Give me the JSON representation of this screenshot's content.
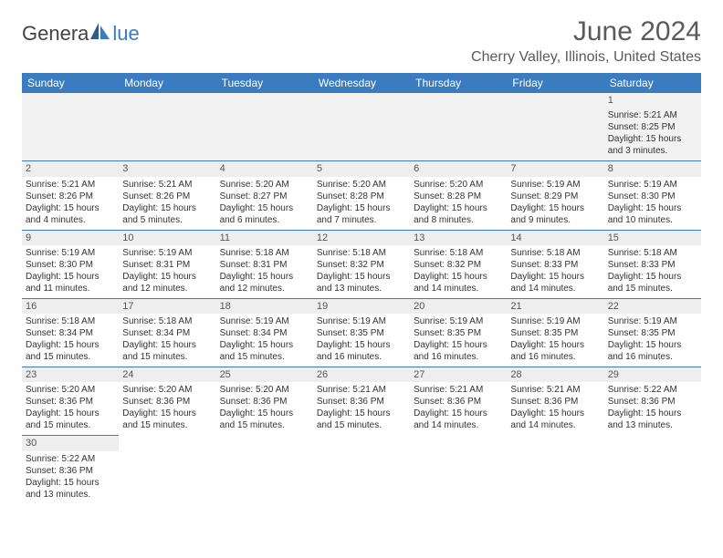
{
  "brand": {
    "part1": "Genera",
    "part2": "lue"
  },
  "title": "June 2024",
  "location": "Cherry Valley, Illinois, United States",
  "colors": {
    "header_bg": "#3b7bbf",
    "header_text": "#ffffff",
    "grid_line": "#3b7bbf",
    "daynum_bg": "#eeeeee",
    "text": "#333333",
    "title_color": "#5a5a5a",
    "logo_gray": "#434343",
    "logo_blue": "#3b7bbf"
  },
  "day_headers": [
    "Sunday",
    "Monday",
    "Tuesday",
    "Wednesday",
    "Thursday",
    "Friday",
    "Saturday"
  ],
  "weeks": [
    [
      null,
      null,
      null,
      null,
      null,
      null,
      {
        "n": "1",
        "sr": "Sunrise: 5:21 AM",
        "ss": "Sunset: 8:25 PM",
        "d1": "Daylight: 15 hours",
        "d2": "and 3 minutes."
      }
    ],
    [
      {
        "n": "2",
        "sr": "Sunrise: 5:21 AM",
        "ss": "Sunset: 8:26 PM",
        "d1": "Daylight: 15 hours",
        "d2": "and 4 minutes."
      },
      {
        "n": "3",
        "sr": "Sunrise: 5:21 AM",
        "ss": "Sunset: 8:26 PM",
        "d1": "Daylight: 15 hours",
        "d2": "and 5 minutes."
      },
      {
        "n": "4",
        "sr": "Sunrise: 5:20 AM",
        "ss": "Sunset: 8:27 PM",
        "d1": "Daylight: 15 hours",
        "d2": "and 6 minutes."
      },
      {
        "n": "5",
        "sr": "Sunrise: 5:20 AM",
        "ss": "Sunset: 8:28 PM",
        "d1": "Daylight: 15 hours",
        "d2": "and 7 minutes."
      },
      {
        "n": "6",
        "sr": "Sunrise: 5:20 AM",
        "ss": "Sunset: 8:28 PM",
        "d1": "Daylight: 15 hours",
        "d2": "and 8 minutes."
      },
      {
        "n": "7",
        "sr": "Sunrise: 5:19 AM",
        "ss": "Sunset: 8:29 PM",
        "d1": "Daylight: 15 hours",
        "d2": "and 9 minutes."
      },
      {
        "n": "8",
        "sr": "Sunrise: 5:19 AM",
        "ss": "Sunset: 8:30 PM",
        "d1": "Daylight: 15 hours",
        "d2": "and 10 minutes."
      }
    ],
    [
      {
        "n": "9",
        "sr": "Sunrise: 5:19 AM",
        "ss": "Sunset: 8:30 PM",
        "d1": "Daylight: 15 hours",
        "d2": "and 11 minutes."
      },
      {
        "n": "10",
        "sr": "Sunrise: 5:19 AM",
        "ss": "Sunset: 8:31 PM",
        "d1": "Daylight: 15 hours",
        "d2": "and 12 minutes."
      },
      {
        "n": "11",
        "sr": "Sunrise: 5:18 AM",
        "ss": "Sunset: 8:31 PM",
        "d1": "Daylight: 15 hours",
        "d2": "and 12 minutes."
      },
      {
        "n": "12",
        "sr": "Sunrise: 5:18 AM",
        "ss": "Sunset: 8:32 PM",
        "d1": "Daylight: 15 hours",
        "d2": "and 13 minutes."
      },
      {
        "n": "13",
        "sr": "Sunrise: 5:18 AM",
        "ss": "Sunset: 8:32 PM",
        "d1": "Daylight: 15 hours",
        "d2": "and 14 minutes."
      },
      {
        "n": "14",
        "sr": "Sunrise: 5:18 AM",
        "ss": "Sunset: 8:33 PM",
        "d1": "Daylight: 15 hours",
        "d2": "and 14 minutes."
      },
      {
        "n": "15",
        "sr": "Sunrise: 5:18 AM",
        "ss": "Sunset: 8:33 PM",
        "d1": "Daylight: 15 hours",
        "d2": "and 15 minutes."
      }
    ],
    [
      {
        "n": "16",
        "sr": "Sunrise: 5:18 AM",
        "ss": "Sunset: 8:34 PM",
        "d1": "Daylight: 15 hours",
        "d2": "and 15 minutes."
      },
      {
        "n": "17",
        "sr": "Sunrise: 5:18 AM",
        "ss": "Sunset: 8:34 PM",
        "d1": "Daylight: 15 hours",
        "d2": "and 15 minutes."
      },
      {
        "n": "18",
        "sr": "Sunrise: 5:19 AM",
        "ss": "Sunset: 8:34 PM",
        "d1": "Daylight: 15 hours",
        "d2": "and 15 minutes."
      },
      {
        "n": "19",
        "sr": "Sunrise: 5:19 AM",
        "ss": "Sunset: 8:35 PM",
        "d1": "Daylight: 15 hours",
        "d2": "and 16 minutes."
      },
      {
        "n": "20",
        "sr": "Sunrise: 5:19 AM",
        "ss": "Sunset: 8:35 PM",
        "d1": "Daylight: 15 hours",
        "d2": "and 16 minutes."
      },
      {
        "n": "21",
        "sr": "Sunrise: 5:19 AM",
        "ss": "Sunset: 8:35 PM",
        "d1": "Daylight: 15 hours",
        "d2": "and 16 minutes."
      },
      {
        "n": "22",
        "sr": "Sunrise: 5:19 AM",
        "ss": "Sunset: 8:35 PM",
        "d1": "Daylight: 15 hours",
        "d2": "and 16 minutes."
      }
    ],
    [
      {
        "n": "23",
        "sr": "Sunrise: 5:20 AM",
        "ss": "Sunset: 8:36 PM",
        "d1": "Daylight: 15 hours",
        "d2": "and 15 minutes."
      },
      {
        "n": "24",
        "sr": "Sunrise: 5:20 AM",
        "ss": "Sunset: 8:36 PM",
        "d1": "Daylight: 15 hours",
        "d2": "and 15 minutes."
      },
      {
        "n": "25",
        "sr": "Sunrise: 5:20 AM",
        "ss": "Sunset: 8:36 PM",
        "d1": "Daylight: 15 hours",
        "d2": "and 15 minutes."
      },
      {
        "n": "26",
        "sr": "Sunrise: 5:21 AM",
        "ss": "Sunset: 8:36 PM",
        "d1": "Daylight: 15 hours",
        "d2": "and 15 minutes."
      },
      {
        "n": "27",
        "sr": "Sunrise: 5:21 AM",
        "ss": "Sunset: 8:36 PM",
        "d1": "Daylight: 15 hours",
        "d2": "and 14 minutes."
      },
      {
        "n": "28",
        "sr": "Sunrise: 5:21 AM",
        "ss": "Sunset: 8:36 PM",
        "d1": "Daylight: 15 hours",
        "d2": "and 14 minutes."
      },
      {
        "n": "29",
        "sr": "Sunrise: 5:22 AM",
        "ss": "Sunset: 8:36 PM",
        "d1": "Daylight: 15 hours",
        "d2": "and 13 minutes."
      }
    ],
    [
      {
        "n": "30",
        "sr": "Sunrise: 5:22 AM",
        "ss": "Sunset: 8:36 PM",
        "d1": "Daylight: 15 hours",
        "d2": "and 13 minutes."
      },
      null,
      null,
      null,
      null,
      null,
      null
    ]
  ]
}
